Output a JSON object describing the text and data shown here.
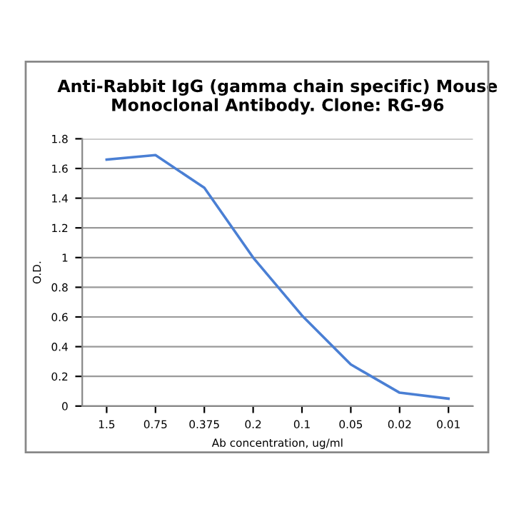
{
  "chart_data": {
    "type": "line",
    "title": "Anti-Rabbit IgG (gamma chain specific) Mouse\nMonoclonal Antibody. Clone: RG-96",
    "xlabel": "Ab concentration, ug/ml",
    "ylabel": "O.D.",
    "categories": [
      "1.5",
      "0.75",
      "0.375",
      "0.2",
      "0.1",
      "0.05",
      "0.02",
      "0.01"
    ],
    "series": [
      {
        "color": "#4a7fd4",
        "values": [
          1.66,
          1.69,
          1.47,
          1.0,
          0.61,
          0.28,
          0.09,
          0.05
        ]
      }
    ],
    "ylim": [
      0,
      1.8
    ],
    "yticks": [
      0,
      0.2,
      0.4,
      0.6,
      0.8,
      1,
      1.2,
      1.4,
      1.6,
      1.8
    ],
    "grid": "y",
    "marker": "none",
    "line_style": "solid"
  }
}
